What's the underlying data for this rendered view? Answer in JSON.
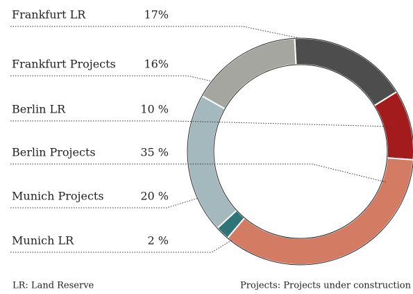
{
  "chart_data": {
    "type": "donut",
    "categories": [
      "Frankfurt LR",
      "Frankfurt Projects",
      "Berlin LR",
      "Berlin Projects",
      "Munich Projects",
      "Munich LR"
    ],
    "values": [
      17,
      16,
      10,
      35,
      20,
      2
    ],
    "value_labels": [
      "17%",
      "16%",
      "10 %",
      "35 %",
      "20 %",
      "2 %"
    ],
    "colors": [
      "#4d4d4d",
      "#a6a6a1",
      "#a31b1d",
      "#d47b63",
      "#a4b9bd",
      "#2e7479"
    ],
    "footnotes": [
      "LR: Land Reserve",
      "Projects: Projects under construction"
    ]
  }
}
